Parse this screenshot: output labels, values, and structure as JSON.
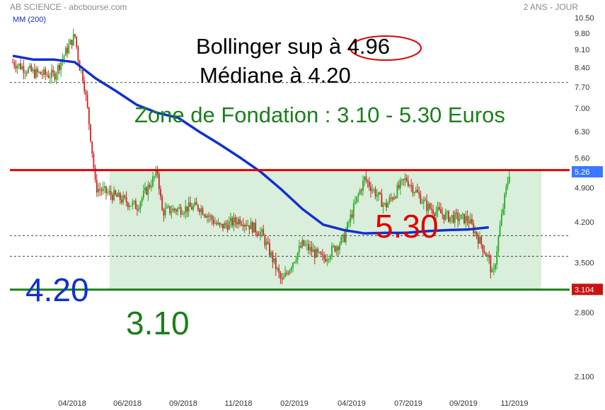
{
  "header": {
    "title": "AB SCIENCE - abcbourse.com",
    "period": "2 ANS - JOUR",
    "legend": "MM (200)"
  },
  "annotations": {
    "bollinger": "Bollinger sup à 4.96",
    "mediane": "Médiane à 4.20",
    "zone": "Zone de Fondation : 3.10 - 5.30 Euros",
    "level_high": "5.30",
    "level_mid": "4.20",
    "level_low": "3.10"
  },
  "price_tags": {
    "last": "5.26",
    "low": "3.104"
  },
  "colors": {
    "up": "#22aa22",
    "down": "#cc2222",
    "ma": "#1030d0",
    "zone_fill": "#d9eedb",
    "line_high": "#e00000",
    "line_low": "#1a7f1a",
    "text_high": "#dd0000",
    "text_mid": "#1030d0",
    "text_low": "#1a7f1a",
    "tag_last": "#3a78ff",
    "tag_low": "#cc1111"
  },
  "chart_data": {
    "type": "candlestick",
    "title": "AB SCIENCE",
    "y_scale": "log",
    "ylim": [
      2.0,
      10.6
    ],
    "y_ticks": [
      "10.50",
      "9.80",
      "9.10",
      "8.40",
      "7.70",
      "7.00",
      "6.30",
      "5.60",
      "4.900",
      "4.200",
      "3.500",
      "2.800",
      "2.100"
    ],
    "x_ticks": [
      "04/2018",
      "06/2018",
      "09/2018",
      "11/2018",
      "02/2019",
      "04/2019",
      "07/2019",
      "09/2019",
      "11/2019"
    ],
    "x_range": [
      "2017-11",
      "2019-11"
    ],
    "levels": {
      "resistance": 5.3,
      "support": 3.1,
      "dashed": [
        7.85,
        3.95,
        3.6
      ]
    },
    "zone": {
      "from": "2018-03",
      "to": "2019-11",
      "low": 3.1,
      "high": 5.3
    },
    "moving_average": {
      "name": "MM (200)",
      "points": [
        [
          "2017-11",
          8.85
        ],
        [
          "2017-12",
          8.7
        ],
        [
          "2018-01",
          8.7
        ],
        [
          "2018-02",
          8.6
        ],
        [
          "2018-03",
          8.0
        ],
        [
          "2018-04",
          7.55
        ],
        [
          "2018-05",
          7.1
        ],
        [
          "2018-06",
          6.85
        ],
        [
          "2018-07",
          6.7
        ],
        [
          "2018-08",
          6.3
        ],
        [
          "2018-09",
          5.95
        ],
        [
          "2018-10",
          5.6
        ],
        [
          "2018-11",
          5.25
        ],
        [
          "2018-12",
          4.85
        ],
        [
          "2019-01",
          4.45
        ],
        [
          "2019-02",
          4.15
        ],
        [
          "2019-03",
          4.05
        ],
        [
          "2019-04",
          3.99
        ],
        [
          "2019-05",
          4.0
        ],
        [
          "2019-06",
          4.0
        ],
        [
          "2019-07",
          4.03
        ],
        [
          "2019-08",
          4.05
        ],
        [
          "2019-09",
          4.06
        ],
        [
          "2019-10",
          4.1
        ]
      ]
    },
    "price_path": [
      [
        "2017-11",
        8.6
      ],
      [
        "2017-12",
        8.2
      ],
      [
        "2018-01",
        8.1
      ],
      [
        "2018-02",
        9.7
      ],
      [
        "2018-02",
        8.5
      ],
      [
        "2018-02",
        8.0
      ],
      [
        "2018-03",
        4.9
      ],
      [
        "2018-04",
        4.7
      ],
      [
        "2018-05",
        4.5
      ],
      [
        "2018-06",
        5.25
      ],
      [
        "2018-06",
        4.4
      ],
      [
        "2018-07",
        4.45
      ],
      [
        "2018-08",
        4.5
      ],
      [
        "2018-09",
        4.1
      ],
      [
        "2018-10",
        4.25
      ],
      [
        "2018-11",
        4.0
      ],
      [
        "2018-12",
        3.2
      ],
      [
        "2019-01",
        3.8
      ],
      [
        "2019-02",
        3.55
      ],
      [
        "2019-03",
        3.9
      ],
      [
        "2019-04",
        5.1
      ],
      [
        "2019-05",
        4.5
      ],
      [
        "2019-06",
        5.1
      ],
      [
        "2019-07",
        4.5
      ],
      [
        "2019-08",
        4.3
      ],
      [
        "2019-09",
        4.25
      ],
      [
        "2019-10",
        3.55
      ],
      [
        "2019-10",
        3.25
      ],
      [
        "2019-11",
        5.26
      ]
    ]
  }
}
